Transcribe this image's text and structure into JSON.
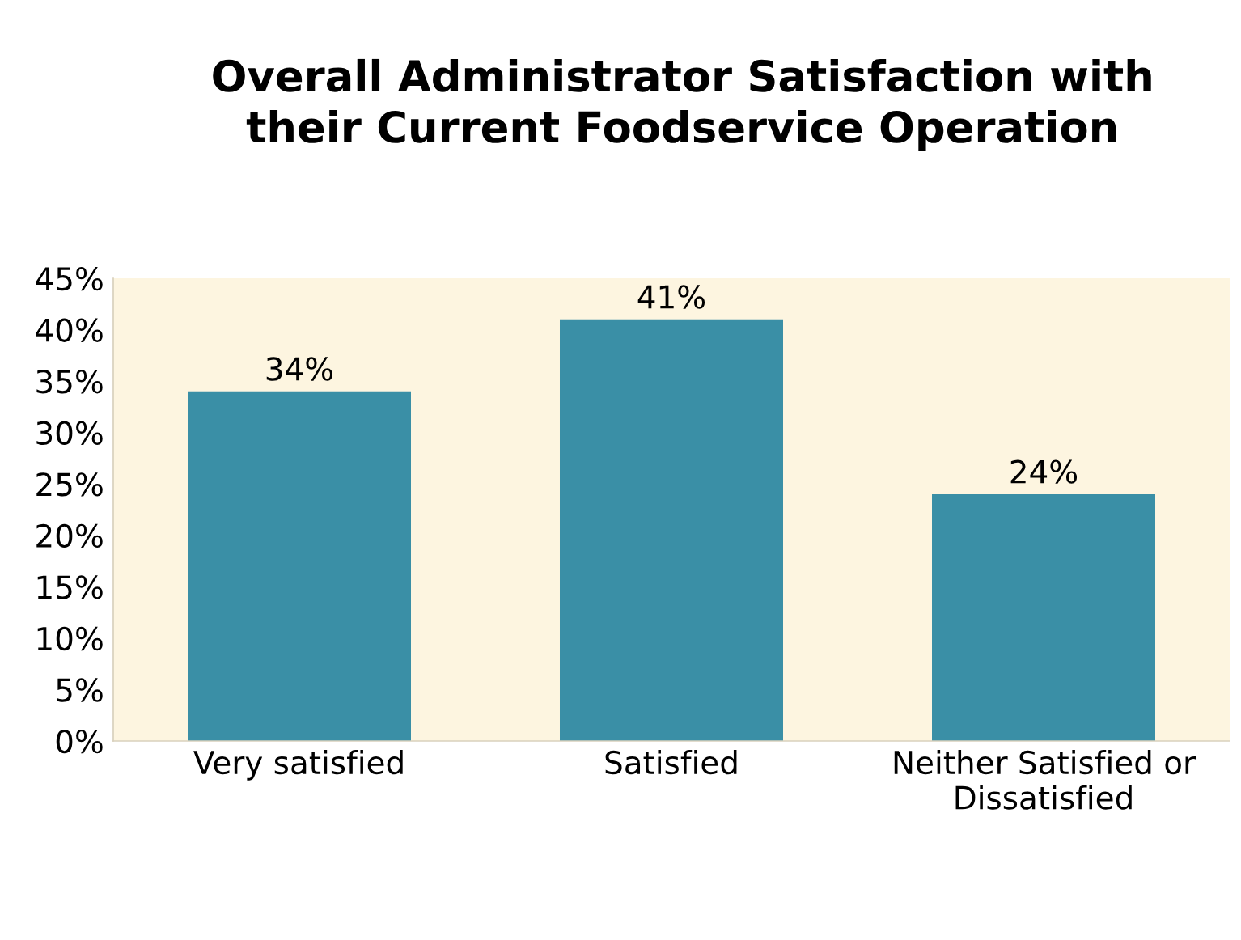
{
  "chart_data": {
    "type": "bar",
    "title": "Overall Administrator Satisfaction with\ntheir Current Foodservice Operation",
    "categories": [
      "Very satisfied",
      "Satisfied",
      "Neither Satisfied or\nDissatisfied"
    ],
    "values": [
      34,
      41,
      24
    ],
    "value_labels": [
      "34%",
      "41%",
      "24%"
    ],
    "color": "#3a8fa6",
    "ylim": [
      0,
      45
    ],
    "yticks": [
      {
        "value": 0,
        "label": "0%"
      },
      {
        "value": 5,
        "label": "5%"
      },
      {
        "value": 10,
        "label": "10%"
      },
      {
        "value": 15,
        "label": "15%"
      },
      {
        "value": 20,
        "label": "20%"
      },
      {
        "value": 25,
        "label": "25%"
      },
      {
        "value": 30,
        "label": "30%"
      },
      {
        "value": 35,
        "label": "35%"
      },
      {
        "value": 40,
        "label": "40%"
      },
      {
        "value": 45,
        "label": "45%"
      }
    ],
    "grid": false
  }
}
